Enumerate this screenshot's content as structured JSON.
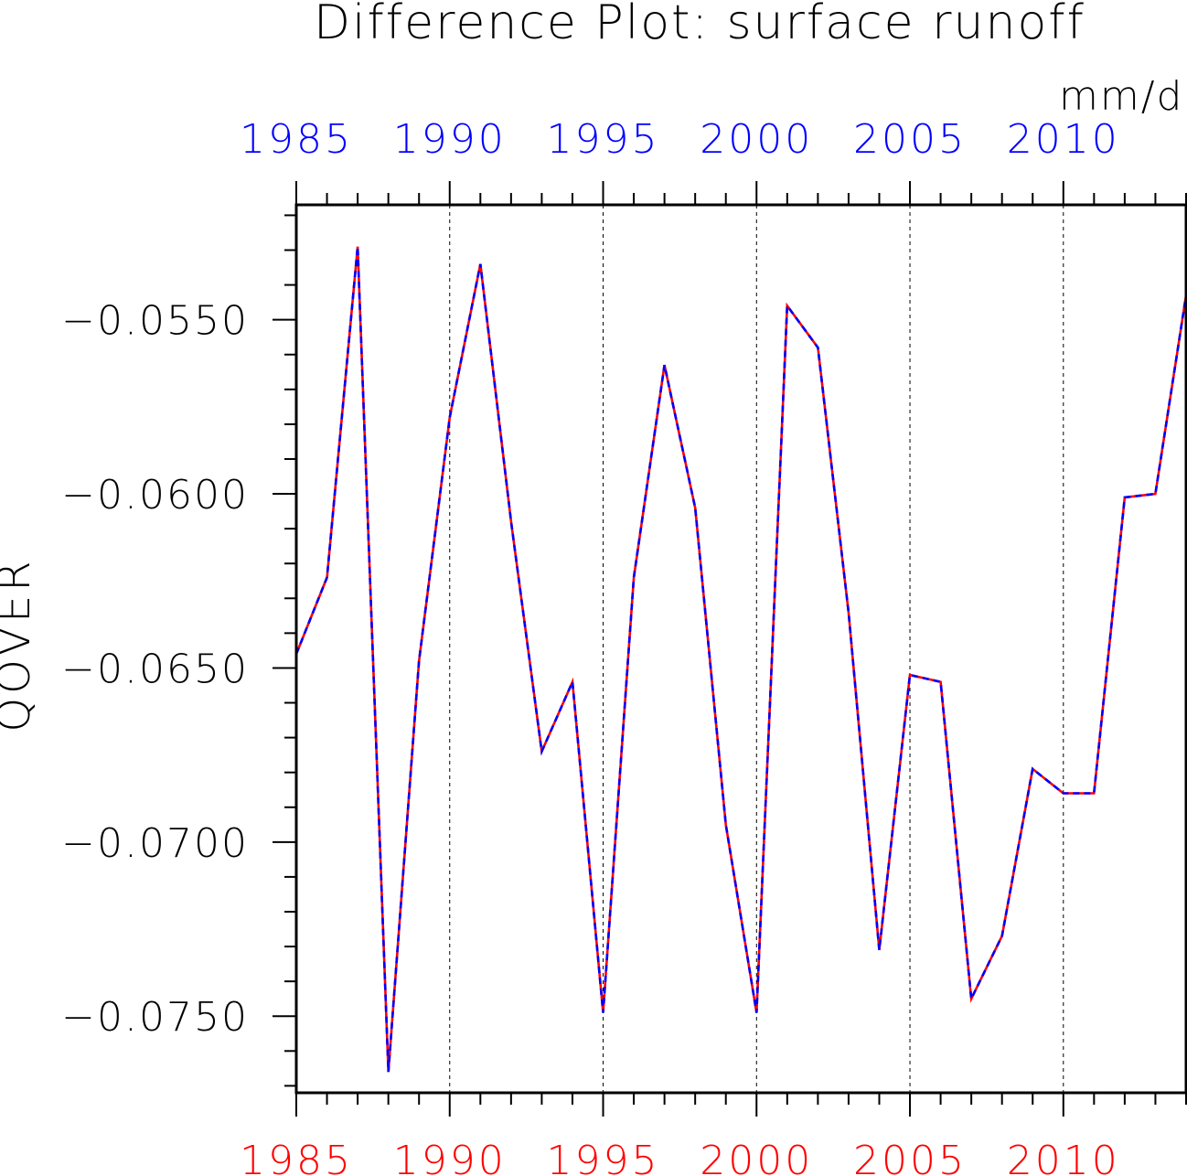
{
  "chart_data": {
    "type": "line",
    "title": "Difference Plot: surface runoff",
    "units": "mm/d",
    "ylabel": "QOVER",
    "xlabel": "",
    "xlim": [
      1985,
      2014
    ],
    "ylim": [
      -0.0772,
      -0.0517
    ],
    "x_ticks": [
      1985,
      1990,
      1995,
      2000,
      2005,
      2010
    ],
    "x_tick_labels": [
      "1985",
      "1990",
      "1995",
      "2000",
      "2005",
      "2010"
    ],
    "y_ticks": [
      -0.055,
      -0.06,
      -0.065,
      -0.07,
      -0.075
    ],
    "y_tick_labels": [
      "−0.0550",
      "−0.0600",
      "−0.0650",
      "−0.0700",
      "−0.0750"
    ],
    "grid": "vertical dashed at major x ticks",
    "x": [
      1985,
      1986,
      1987,
      1988,
      1989,
      1990,
      1991,
      1992,
      1993,
      1994,
      1995,
      1996,
      1997,
      1998,
      1999,
      2000,
      2001,
      2002,
      2003,
      2004,
      2005,
      2006,
      2007,
      2008,
      2009,
      2010,
      2011,
      2012,
      2013,
      2014
    ],
    "series": [
      {
        "values": [
          -0.0646,
          -0.0624,
          -0.0529,
          -0.0766,
          -0.0648,
          -0.0578,
          -0.0534,
          -0.0608,
          -0.0674,
          -0.0654,
          -0.0749,
          -0.0624,
          -0.0563,
          -0.0604,
          -0.0695,
          -0.0749,
          -0.0546,
          -0.0558,
          -0.0634,
          -0.0731,
          -0.0652,
          -0.0654,
          -0.0745,
          -0.0727,
          -0.0679,
          -0.0686,
          -0.0686,
          -0.0601,
          -0.06,
          -0.0543
        ],
        "color": "#ff0000",
        "style": "solid"
      },
      {
        "values": [
          -0.0646,
          -0.0624,
          -0.0529,
          -0.0766,
          -0.0648,
          -0.0578,
          -0.0534,
          -0.0608,
          -0.0674,
          -0.0654,
          -0.0749,
          -0.0624,
          -0.0563,
          -0.0604,
          -0.0695,
          -0.0749,
          -0.0546,
          -0.0558,
          -0.0634,
          -0.0731,
          -0.0652,
          -0.0654,
          -0.0745,
          -0.0727,
          -0.0679,
          -0.0686,
          -0.0686,
          -0.0601,
          -0.06,
          -0.0543
        ],
        "color": "#0000ff",
        "style": "dashed"
      }
    ],
    "bottom_axis_label_color": "#ff0000",
    "top_axis_label_color": "#0000ff"
  }
}
